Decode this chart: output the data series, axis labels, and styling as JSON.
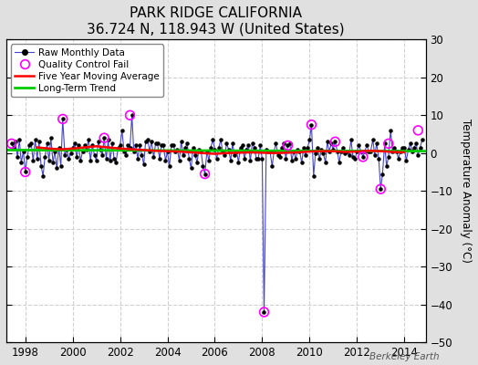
{
  "title": "PARK RIDGE CALIFORNIA",
  "subtitle": "36.724 N, 118.943 W (United States)",
  "ylabel": "Temperature Anomaly (°C)",
  "watermark": "Berkeley Earth",
  "xlim": [
    1997.2,
    2014.9
  ],
  "ylim": [
    -50,
    30
  ],
  "yticks": [
    -50,
    -40,
    -30,
    -20,
    -10,
    0,
    10,
    20,
    30
  ],
  "xticks": [
    1998,
    2000,
    2002,
    2004,
    2006,
    2008,
    2010,
    2012,
    2014
  ],
  "plot_bg": "#ffffff",
  "fig_bg": "#e0e0e0",
  "grid_color": "#d0d0d0",
  "raw_color": "#4444cc",
  "ma_color": "#ff0000",
  "trend_color": "#00cc00",
  "qc_color": "#ff00ff",
  "raw_data_x": [
    1997.42,
    1997.5,
    1997.58,
    1997.67,
    1997.75,
    1997.83,
    1997.92,
    1998.0,
    1998.08,
    1998.17,
    1998.25,
    1998.33,
    1998.42,
    1998.5,
    1998.58,
    1998.67,
    1998.75,
    1998.83,
    1998.92,
    1999.0,
    1999.08,
    1999.17,
    1999.25,
    1999.33,
    1999.42,
    1999.5,
    1999.58,
    1999.67,
    1999.75,
    1999.83,
    1999.92,
    2000.0,
    2000.08,
    2000.17,
    2000.25,
    2000.33,
    2000.42,
    2000.5,
    2000.58,
    2000.67,
    2000.75,
    2000.83,
    2000.92,
    2001.0,
    2001.08,
    2001.17,
    2001.25,
    2001.33,
    2001.42,
    2001.5,
    2001.58,
    2001.67,
    2001.75,
    2001.83,
    2001.92,
    2002.0,
    2002.08,
    2002.17,
    2002.25,
    2002.33,
    2002.42,
    2002.5,
    2002.58,
    2002.67,
    2002.75,
    2002.83,
    2002.92,
    2003.0,
    2003.08,
    2003.17,
    2003.25,
    2003.33,
    2003.42,
    2003.5,
    2003.58,
    2003.67,
    2003.75,
    2003.83,
    2003.92,
    2004.0,
    2004.08,
    2004.17,
    2004.25,
    2004.33,
    2004.42,
    2004.5,
    2004.58,
    2004.67,
    2004.75,
    2004.83,
    2004.92,
    2005.0,
    2005.08,
    2005.17,
    2005.25,
    2005.33,
    2005.42,
    2005.5,
    2005.58,
    2005.67,
    2005.75,
    2005.83,
    2005.92,
    2006.0,
    2006.08,
    2006.17,
    2006.25,
    2006.33,
    2006.42,
    2006.5,
    2006.58,
    2006.67,
    2006.75,
    2006.83,
    2006.92,
    2007.0,
    2007.08,
    2007.17,
    2007.25,
    2007.33,
    2007.42,
    2007.5,
    2007.58,
    2007.67,
    2007.75,
    2007.83,
    2007.92,
    2008.0,
    2008.08,
    2008.17,
    2008.25,
    2008.33,
    2008.42,
    2008.5,
    2008.58,
    2008.67,
    2008.75,
    2008.83,
    2008.92,
    2009.0,
    2009.08,
    2009.17,
    2009.25,
    2009.33,
    2009.42,
    2009.5,
    2009.58,
    2009.67,
    2009.75,
    2009.83,
    2009.92,
    2010.0,
    2010.08,
    2010.17,
    2010.25,
    2010.33,
    2010.42,
    2010.5,
    2010.58,
    2010.67,
    2010.75,
    2010.83,
    2010.92,
    2011.0,
    2011.08,
    2011.17,
    2011.25,
    2011.33,
    2011.42,
    2011.5,
    2011.58,
    2011.67,
    2011.75,
    2011.83,
    2011.92,
    2012.0,
    2012.08,
    2012.17,
    2012.25,
    2012.33,
    2012.42,
    2012.5,
    2012.58,
    2012.67,
    2012.75,
    2012.83,
    2012.92,
    2013.0,
    2013.08,
    2013.17,
    2013.25,
    2013.33,
    2013.42,
    2013.5,
    2013.58,
    2013.67,
    2013.75,
    2013.83,
    2013.92,
    2014.0,
    2014.08,
    2014.17,
    2014.25,
    2014.33,
    2014.42,
    2014.5,
    2014.58,
    2014.67,
    2014.75
  ],
  "raw_data_y": [
    2.5,
    1.5,
    3.0,
    -1.0,
    3.5,
    -2.5,
    0.5,
    -5.0,
    -1.0,
    2.0,
    2.5,
    -2.0,
    3.5,
    -1.5,
    3.0,
    -3.5,
    -6.0,
    -1.0,
    2.5,
    -2.0,
    4.0,
    -2.5,
    0.5,
    -4.0,
    1.5,
    -3.5,
    9.0,
    -0.5,
    1.0,
    -1.5,
    0.0,
    1.5,
    2.5,
    -1.0,
    2.0,
    -2.0,
    0.5,
    2.0,
    1.0,
    3.5,
    -2.0,
    2.0,
    -0.5,
    -2.0,
    3.0,
    1.0,
    -0.5,
    4.0,
    -1.5,
    3.5,
    -2.0,
    2.5,
    -1.5,
    -2.5,
    1.5,
    2.0,
    6.0,
    0.5,
    -0.5,
    2.0,
    1.5,
    10.0,
    0.5,
    2.0,
    -1.5,
    2.0,
    -0.5,
    -3.0,
    3.0,
    3.5,
    0.5,
    3.0,
    -1.0,
    2.5,
    2.5,
    -1.5,
    2.0,
    2.0,
    -2.0,
    0.5,
    -3.5,
    2.0,
    2.0,
    0.5,
    1.0,
    -2.0,
    3.0,
    -0.5,
    1.5,
    2.5,
    -1.5,
    -4.0,
    1.5,
    -0.5,
    -2.5,
    1.0,
    0.5,
    -3.5,
    -5.5,
    0.5,
    -2.0,
    1.5,
    3.5,
    1.0,
    -1.5,
    1.5,
    3.5,
    0.5,
    -0.5,
    2.5,
    1.0,
    -2.0,
    2.5,
    -0.5,
    0.5,
    -2.5,
    1.5,
    2.0,
    -1.5,
    1.0,
    2.0,
    -2.0,
    2.5,
    1.5,
    -1.5,
    -1.5,
    2.0,
    -1.5,
    -42.0,
    1.0,
    0.5,
    0.5,
    -3.5,
    0.5,
    2.5,
    -0.5,
    -1.0,
    1.5,
    2.5,
    -1.5,
    2.0,
    2.5,
    -2.0,
    0.5,
    -1.5,
    1.0,
    0.5,
    -2.5,
    1.5,
    -0.5,
    1.5,
    3.5,
    7.5,
    -6.0,
    0.0,
    1.5,
    -1.5,
    1.0,
    0.0,
    -2.5,
    3.0,
    0.5,
    2.5,
    1.0,
    3.0,
    0.5,
    -2.5,
    0.5,
    1.5,
    0.0,
    0.5,
    -0.5,
    3.5,
    -1.0,
    -1.5,
    0.5,
    2.0,
    0.5,
    -1.0,
    0.5,
    2.0,
    0.5,
    0.5,
    3.5,
    -0.5,
    2.5,
    -1.5,
    -9.5,
    -5.5,
    2.5,
    -3.5,
    -1.0,
    6.0,
    0.5,
    1.5,
    0.5,
    -1.5,
    0.5,
    1.5,
    1.5,
    -2.0,
    1.0,
    2.5,
    0.5,
    1.5,
    2.5,
    -0.5,
    1.5,
    3.5
  ],
  "qc_fail_x": [
    1997.42,
    1998.0,
    1999.58,
    2001.33,
    2002.42,
    2005.58,
    2008.08,
    2009.08,
    2010.08,
    2011.08,
    2012.25,
    2013.0,
    2013.33,
    2014.58
  ],
  "qc_fail_y": [
    2.5,
    -5.0,
    9.0,
    4.0,
    10.0,
    -5.5,
    -42.0,
    2.0,
    7.5,
    3.0,
    -1.0,
    -9.5,
    2.5,
    6.0
  ],
  "moving_avg_x": [
    1998.5,
    1999.0,
    1999.5,
    2000.0,
    2000.5,
    2001.0,
    2001.5,
    2002.0,
    2002.5,
    2003.0,
    2003.5,
    2004.0,
    2004.5,
    2005.0,
    2005.5,
    2006.0,
    2006.5,
    2007.0,
    2007.5,
    2008.0,
    2008.5,
    2009.0,
    2009.5,
    2010.0,
    2010.5,
    2011.0,
    2011.5,
    2012.0,
    2012.5,
    2013.0,
    2013.5,
    2014.0
  ],
  "moving_avg_y": [
    1.5,
    1.2,
    1.0,
    1.2,
    1.5,
    1.8,
    1.5,
    1.2,
    1.0,
    0.8,
    0.6,
    0.5,
    0.4,
    0.2,
    0.0,
    -0.2,
    0.0,
    0.1,
    0.2,
    0.1,
    0.0,
    0.1,
    0.2,
    0.4,
    0.5,
    0.5,
    0.3,
    0.4,
    0.6,
    0.5,
    0.3,
    0.2
  ],
  "trend_x": [
    1997.0,
    2015.0
  ],
  "trend_y": [
    0.8,
    0.5
  ]
}
